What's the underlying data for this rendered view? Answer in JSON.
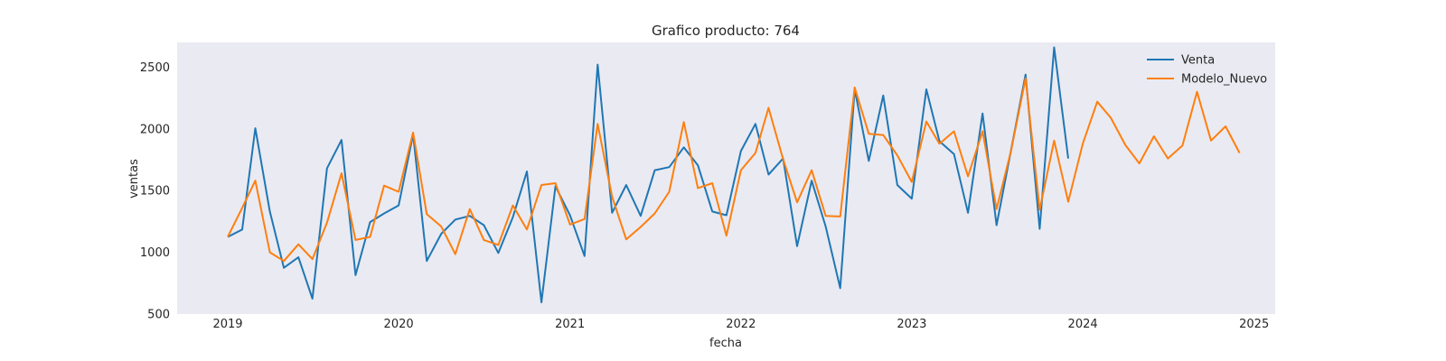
{
  "chart_data": {
    "type": "line",
    "title": "Grafico producto: 764",
    "xlabel": "fecha",
    "ylabel": "ventas",
    "xlim": [
      "2018-09-15",
      "2025-02-15"
    ],
    "ylim": [
      500,
      2700
    ],
    "x_ticks": [
      "2019",
      "2020",
      "2021",
      "2022",
      "2023",
      "2024",
      "2025"
    ],
    "y_ticks": [
      500,
      1000,
      1500,
      2000,
      2500
    ],
    "grid": false,
    "legend_position": "top-right",
    "background_color": "#eaeaf2",
    "series": [
      {
        "name": "Venta",
        "color": "#1f77b4",
        "start": "2019-01",
        "values": [
          1125,
          1185,
          2005,
          1330,
          875,
          960,
          625,
          1680,
          1910,
          815,
          1245,
          1315,
          1380,
          1955,
          930,
          1150,
          1265,
          1295,
          1220,
          995,
          1285,
          1655,
          595,
          1535,
          1300,
          970,
          2520,
          1320,
          1545,
          1295,
          1665,
          1690,
          1850,
          1705,
          1330,
          1300,
          1820,
          2040,
          1630,
          1760,
          1050,
          1580,
          1210,
          710,
          2320,
          1740,
          2270,
          1545,
          1435,
          2320,
          1900,
          1795,
          1320,
          2125,
          1220,
          1830,
          2440,
          1190,
          2660,
          1760
        ]
      },
      {
        "name": "Modelo_Nuevo",
        "color": "#ff7f0e",
        "start": "2019-01",
        "values": [
          1125,
          1360,
          1580,
          1000,
          930,
          1065,
          945,
          1240,
          1640,
          1100,
          1125,
          1540,
          1490,
          1970,
          1310,
          1210,
          985,
          1350,
          1100,
          1060,
          1380,
          1185,
          1545,
          1560,
          1225,
          1270,
          2040,
          1450,
          1105,
          1205,
          1315,
          1490,
          2055,
          1520,
          1560,
          1135,
          1665,
          1805,
          2170,
          1755,
          1405,
          1665,
          1295,
          1290,
          2335,
          1960,
          1950,
          1785,
          1570,
          2060,
          1880,
          1980,
          1615,
          1980,
          1350,
          1825,
          2410,
          1345,
          1905,
          1410,
          1880,
          2220,
          2090,
          1870,
          1720,
          1940,
          1760,
          1865,
          2300,
          1905,
          2020,
          1805
        ]
      }
    ]
  }
}
